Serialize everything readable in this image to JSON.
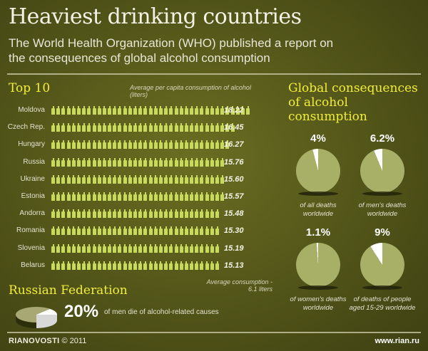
{
  "header": {
    "title": "Heaviest drinking countries",
    "subtitle_line1": "The World Health Organization (WHO) published a report on",
    "subtitle_line2": "the consequences of global alcohol consumption"
  },
  "top10": {
    "heading": "Top 10",
    "note_line1": "Average per capita consumption of alcohol",
    "note_line2": "(liters)",
    "rows": [
      {
        "country": "Moldova",
        "value": "18.22",
        "bottles": 39
      },
      {
        "country": "Czech  Rep.",
        "value": "16.45",
        "bottles": 36
      },
      {
        "country": "Hungary",
        "value": "16.27",
        "bottles": 35
      },
      {
        "country": "Russia",
        "value": "15.76",
        "bottles": 34
      },
      {
        "country": "Ukraine",
        "value": "15.60",
        "bottles": 34
      },
      {
        "country": "Estonia",
        "value": "15.57",
        "bottles": 34
      },
      {
        "country": "Andorra",
        "value": "15.48",
        "bottles": 33
      },
      {
        "country": "Romania",
        "value": "15.30",
        "bottles": 33
      },
      {
        "country": "Slovenia",
        "value": "15.19",
        "bottles": 33
      },
      {
        "country": "Belarus",
        "value": "15.13",
        "bottles": 33
      }
    ],
    "avg_note_line1": "Average consumption -",
    "avg_note_line2": "6.1 liters"
  },
  "global": {
    "heading_line1": "Global consequences",
    "heading_line2": "of alcohol consumption",
    "pies": [
      {
        "pct": "4%",
        "value": 4,
        "cap1": "of all deaths",
        "cap2": "worldwide"
      },
      {
        "pct": "6.2%",
        "value": 6.2,
        "cap1": "of men's deaths",
        "cap2": "worldwide"
      },
      {
        "pct": "1.1%",
        "value": 1.1,
        "cap1": "of women's deaths",
        "cap2": "worldwide"
      },
      {
        "pct": "9%",
        "value": 9,
        "cap1": "of deaths of people",
        "cap2": "aged 15-29 worldwide"
      }
    ]
  },
  "russia": {
    "heading": "Russian Federation",
    "pct": "20%",
    "text": "of men die of alcohol-related causes"
  },
  "footer": {
    "brand": "RIANOVOSTI",
    "copyright": "© 2011",
    "url": "www.rian.ru"
  },
  "colors": {
    "background": "#56591a",
    "bottle": "#c8da5e",
    "heading_yellow": "#f2ee3a",
    "pie_fill": "#a8b068",
    "pie_slice": "#ffffff"
  },
  "chart_data": [
    {
      "type": "bar",
      "title": "Top 10 - Average per capita consumption of alcohol (liters)",
      "categories": [
        "Moldova",
        "Czech Rep.",
        "Hungary",
        "Russia",
        "Ukraine",
        "Estonia",
        "Andorra",
        "Romania",
        "Slovenia",
        "Belarus"
      ],
      "values": [
        18.22,
        16.45,
        16.27,
        15.76,
        15.6,
        15.57,
        15.48,
        15.3,
        15.19,
        15.13
      ],
      "xlabel": "",
      "ylabel": "liters",
      "orientation": "horizontal",
      "annotations": [
        "Average consumption - 6.1 liters"
      ]
    },
    {
      "type": "pie",
      "title": "Global consequences of alcohol consumption",
      "categories": [
        "of all deaths worldwide",
        "of men's deaths worldwide",
        "of women's deaths worldwide",
        "of deaths of people aged 15-29 worldwide"
      ],
      "values": [
        4,
        6.2,
        1.1,
        9
      ]
    },
    {
      "type": "pie",
      "title": "Russian Federation",
      "categories": [
        "of men die of alcohol-related causes"
      ],
      "values": [
        20
      ]
    }
  ]
}
